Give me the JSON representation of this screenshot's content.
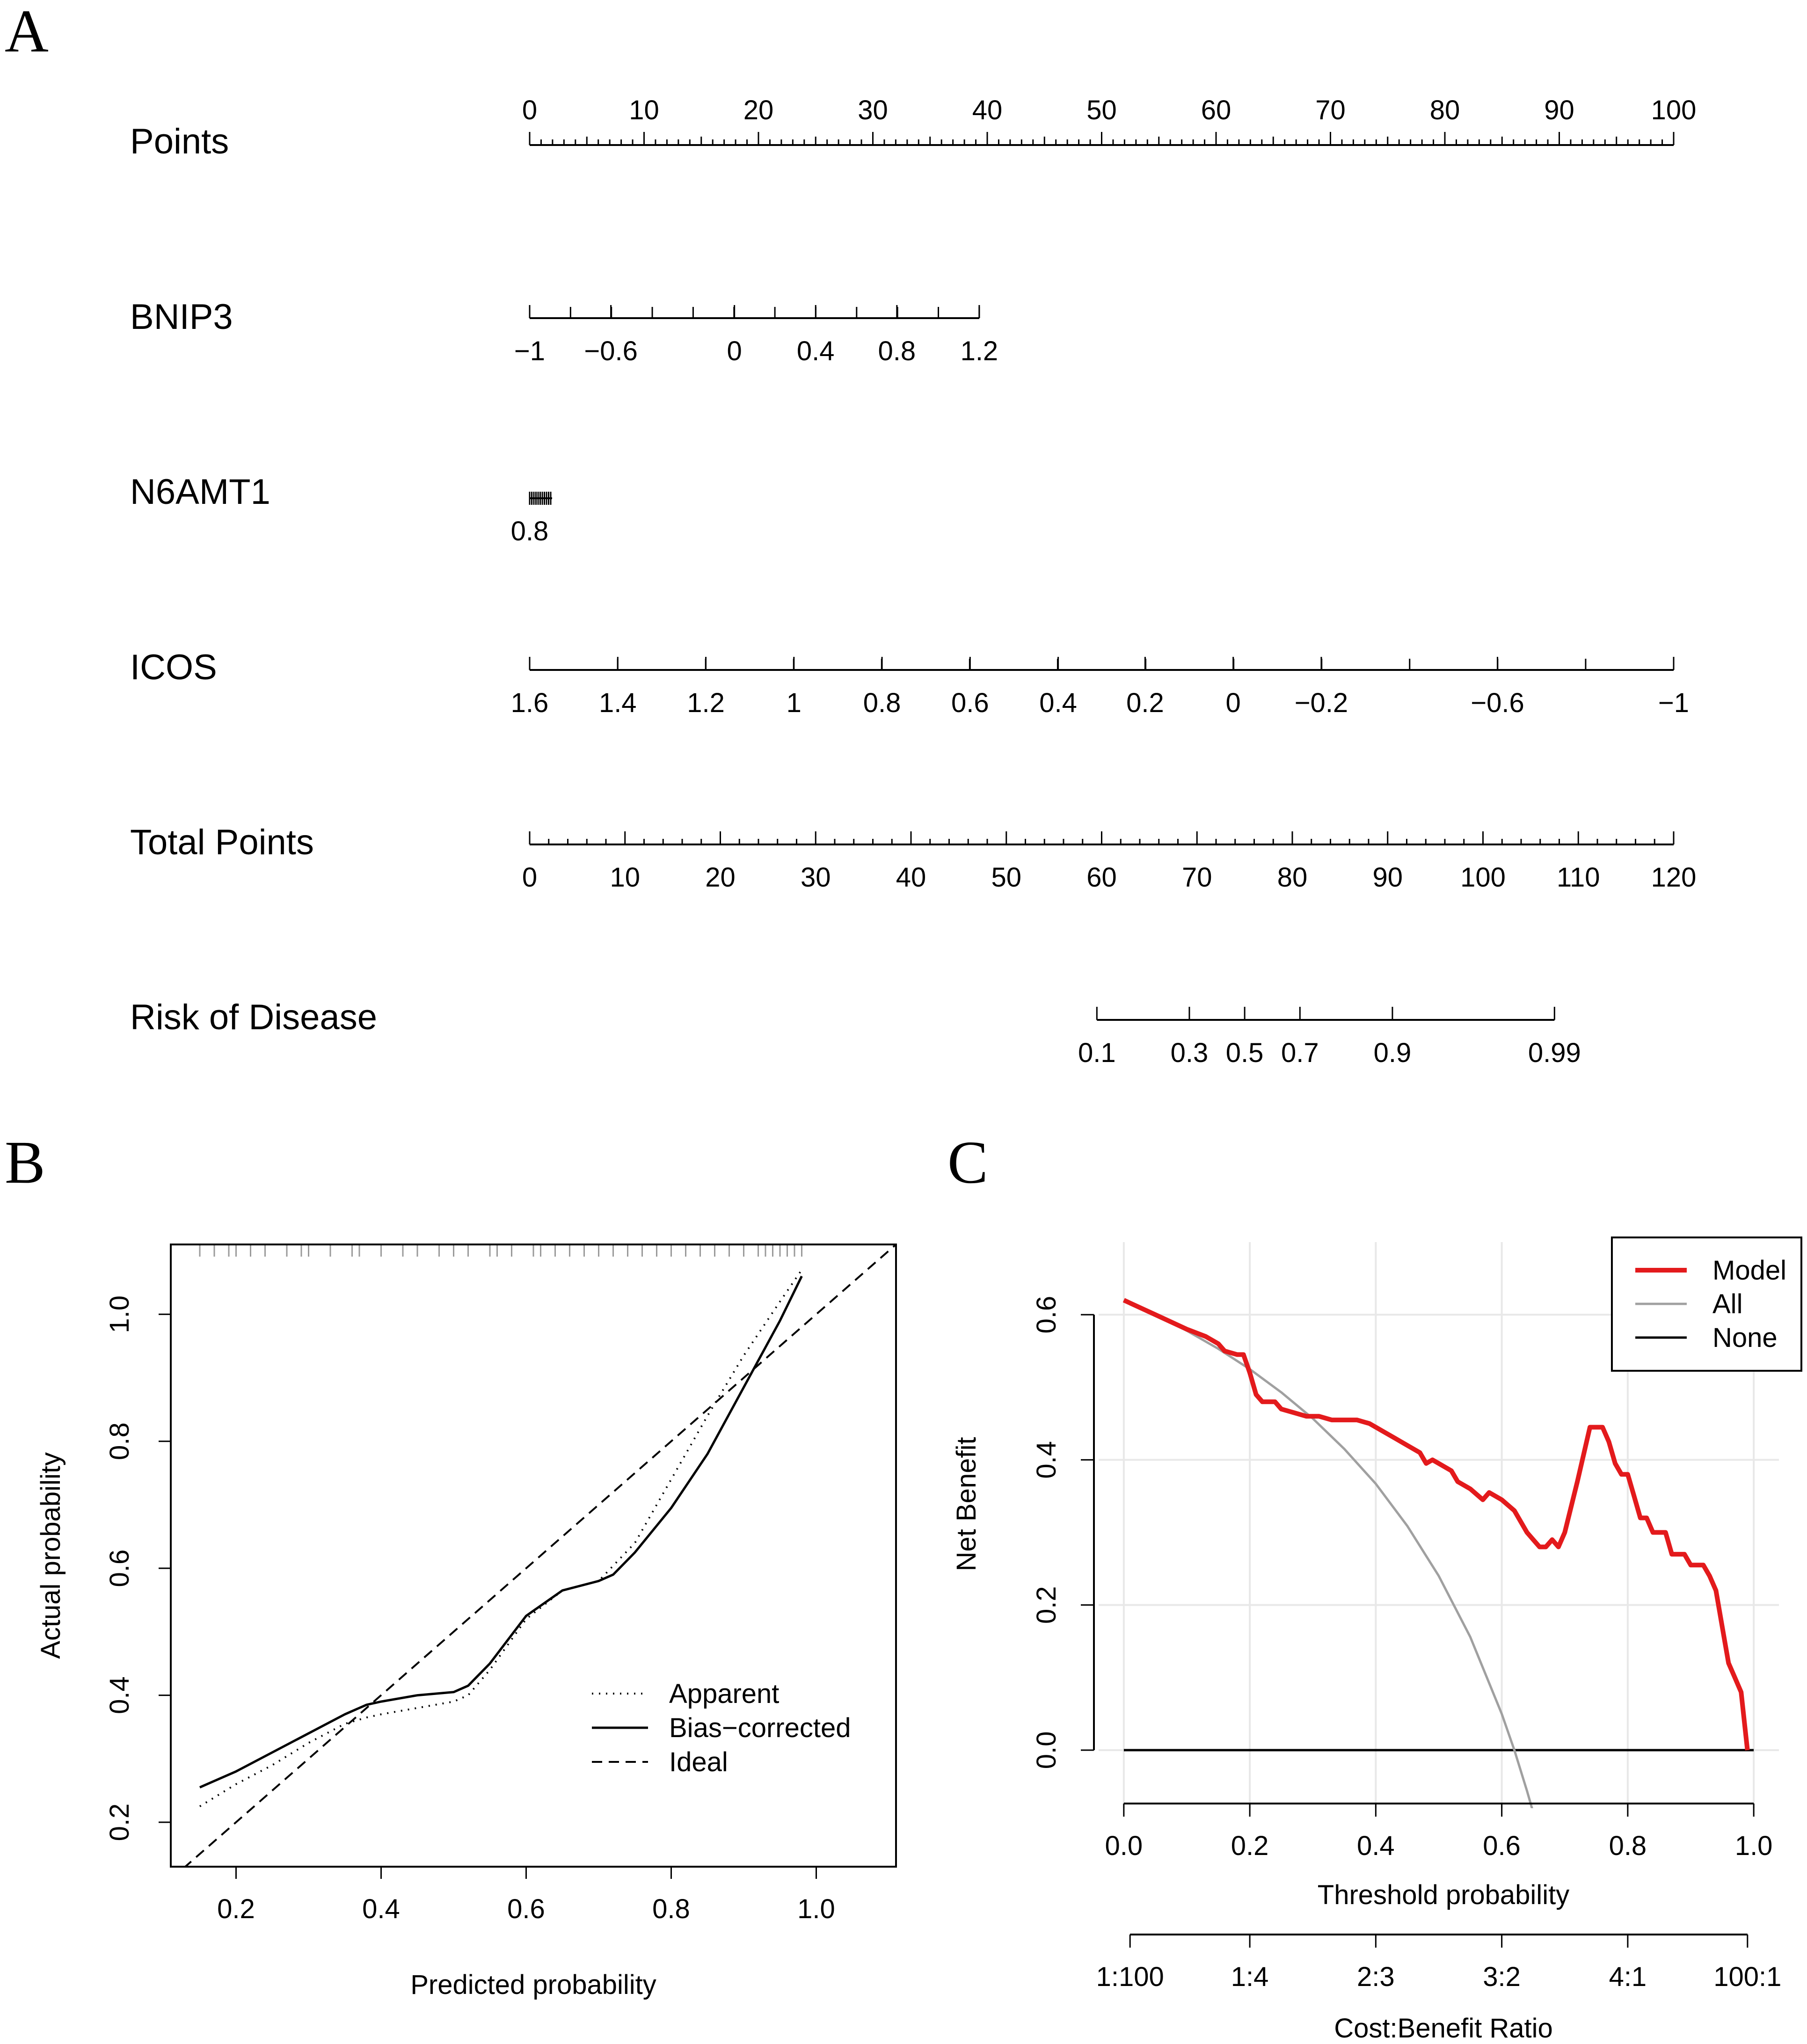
{
  "panel_labels": {
    "a": "A",
    "b": "B",
    "c": "C"
  },
  "chart_data": [
    {
      "type": "nomogram",
      "panel": "A",
      "rows": [
        {
          "name": "Points",
          "label": "Points",
          "ticks": [
            {
              "label": "0",
              "points": 0
            },
            {
              "label": "10",
              "points": 10
            },
            {
              "label": "20",
              "points": 20
            },
            {
              "label": "30",
              "points": 30
            },
            {
              "label": "40",
              "points": 40
            },
            {
              "label": "50",
              "points": 50
            },
            {
              "label": "60",
              "points": 60
            },
            {
              "label": "70",
              "points": 70
            },
            {
              "label": "80",
              "points": 80
            },
            {
              "label": "90",
              "points": 90
            },
            {
              "label": "100",
              "points": 100
            }
          ]
        },
        {
          "name": "BNIP3",
          "label": "BNIP3",
          "ticks": [
            {
              "label": "−1",
              "points": 0
            },
            {
              "label": "−0.6",
              "points": 7.1
            },
            {
              "label": "0",
              "points": 17.9
            },
            {
              "label": "0.4",
              "points": 25
            },
            {
              "label": "0.8",
              "points": 32.1
            },
            {
              "label": "1.2",
              "points": 39.3
            }
          ]
        },
        {
          "name": "N6AMT1",
          "label": "N6AMT1",
          "ticks": [
            {
              "label": "0.8",
              "points": 0
            }
          ]
        },
        {
          "name": "ICOS",
          "label": "ICOS",
          "ticks": [
            {
              "label": "1.6",
              "points": 0
            },
            {
              "label": "1.4",
              "points": 7.7
            },
            {
              "label": "1.2",
              "points": 15.4
            },
            {
              "label": "1",
              "points": 23.1
            },
            {
              "label": "0.8",
              "points": 30.8
            },
            {
              "label": "0.6",
              "points": 38.5
            },
            {
              "label": "0.4",
              "points": 46.2
            },
            {
              "label": "0.2",
              "points": 53.8
            },
            {
              "label": "0",
              "points": 61.5
            },
            {
              "label": "−0.2",
              "points": 69.2
            },
            {
              "label": "−0.6",
              "points": 84.6
            },
            {
              "label": "−1",
              "points": 100
            }
          ]
        },
        {
          "name": "Total Points",
          "label": "Total Points",
          "ticks": [
            {
              "label": "0",
              "total": 0
            },
            {
              "label": "10",
              "total": 10
            },
            {
              "label": "20",
              "total": 20
            },
            {
              "label": "30",
              "total": 30
            },
            {
              "label": "40",
              "total": 40
            },
            {
              "label": "50",
              "total": 50
            },
            {
              "label": "60",
              "total": 60
            },
            {
              "label": "70",
              "total": 70
            },
            {
              "label": "80",
              "total": 80
            },
            {
              "label": "90",
              "total": 90
            },
            {
              "label": "100",
              "total": 100
            },
            {
              "label": "110",
              "total": 110
            },
            {
              "label": "120",
              "total": 120
            }
          ]
        },
        {
          "name": "Risk of Disease",
          "label": "Risk of Disease",
          "ticks": [
            {
              "label": "0.1",
              "total": 59.5
            },
            {
              "label": "0.3",
              "total": 69.2
            },
            {
              "label": "0.5",
              "total": 75
            },
            {
              "label": "0.7",
              "total": 80.8
            },
            {
              "label": "0.9",
              "total": 90.5
            },
            {
              "label": "0.99",
              "total": 107.5
            }
          ]
        }
      ]
    },
    {
      "type": "line",
      "panel": "B",
      "title": "",
      "xlabel": "Predicted probability",
      "ylabel": "Actual probability",
      "xlim": [
        0.11,
        1.11
      ],
      "ylim": [
        0.13,
        1.11
      ],
      "xticks": [
        0.2,
        0.4,
        0.6,
        0.8,
        1.0
      ],
      "xtick_labels": [
        "0.2",
        "0.4",
        "0.6",
        "0.8",
        "1.0"
      ],
      "yticks": [
        0.2,
        0.4,
        0.6,
        0.8,
        1.0
      ],
      "ytick_labels": [
        "0.2",
        "0.4",
        "0.6",
        "0.8",
        "1.0"
      ],
      "legend": [
        {
          "label": "Apparent",
          "style": "dotted"
        },
        {
          "label": "Bias−corrected",
          "style": "solid"
        },
        {
          "label": "Ideal",
          "style": "dashed"
        }
      ],
      "legend_position": "bottom-right",
      "rug_x": [
        0.15,
        0.17,
        0.19,
        0.2,
        0.22,
        0.24,
        0.27,
        0.29,
        0.3,
        0.33,
        0.36,
        0.37,
        0.4,
        0.43,
        0.45,
        0.48,
        0.5,
        0.52,
        0.55,
        0.56,
        0.58,
        0.61,
        0.62,
        0.64,
        0.66,
        0.68,
        0.7,
        0.72,
        0.74,
        0.76,
        0.78,
        0.8,
        0.82,
        0.84,
        0.86,
        0.88,
        0.9,
        0.92,
        0.93,
        0.94,
        0.95,
        0.96,
        0.97,
        0.98
      ],
      "series": [
        {
          "name": "Apparent",
          "style": "dotted",
          "x": [
            0.15,
            0.2,
            0.25,
            0.3,
            0.35,
            0.38,
            0.4,
            0.45,
            0.5,
            0.52,
            0.55,
            0.6,
            0.65,
            0.7,
            0.75,
            0.8,
            0.85,
            0.9,
            0.95,
            0.98
          ],
          "y": [
            0.225,
            0.26,
            0.29,
            0.325,
            0.355,
            0.365,
            0.37,
            0.38,
            0.39,
            0.4,
            0.44,
            0.52,
            0.565,
            0.58,
            0.64,
            0.74,
            0.84,
            0.935,
            1.02,
            1.07
          ]
        },
        {
          "name": "Bias−corrected",
          "style": "solid",
          "x": [
            0.15,
            0.2,
            0.25,
            0.3,
            0.35,
            0.38,
            0.4,
            0.45,
            0.5,
            0.52,
            0.55,
            0.6,
            0.65,
            0.7,
            0.72,
            0.75,
            0.8,
            0.85,
            0.9,
            0.95,
            0.98
          ],
          "y": [
            0.255,
            0.28,
            0.31,
            0.34,
            0.37,
            0.385,
            0.39,
            0.4,
            0.405,
            0.415,
            0.45,
            0.525,
            0.565,
            0.58,
            0.59,
            0.625,
            0.695,
            0.78,
            0.885,
            0.99,
            1.06
          ]
        },
        {
          "name": "Ideal",
          "style": "dashed",
          "x": [
            0.11,
            1.11
          ],
          "y": [
            0.11,
            1.11
          ]
        }
      ]
    },
    {
      "type": "line",
      "panel": "C",
      "title": "",
      "xlabel": "Threshold probability",
      "ylabel": "Net Benefit",
      "secondary_xlabel": "Cost:Benefit Ratio",
      "xlim": [
        -0.04,
        1.04
      ],
      "ylim": [
        -0.08,
        0.7
      ],
      "xticks": [
        0.0,
        0.2,
        0.4,
        0.6,
        0.8,
        1.0
      ],
      "xtick_labels": [
        "0.0",
        "0.2",
        "0.4",
        "0.6",
        "0.8",
        "1.0"
      ],
      "yticks": [
        0.0,
        0.2,
        0.4,
        0.6
      ],
      "ytick_labels": [
        "0.0",
        "0.2",
        "0.4",
        "0.6"
      ],
      "secondary_xticks": [
        0.0099,
        0.2,
        0.4,
        0.6,
        0.8,
        0.9901
      ],
      "secondary_xtick_labels": [
        "1:100",
        "1:4",
        "2:3",
        "3:2",
        "4:1",
        "100:1"
      ],
      "grid": true,
      "legend": [
        {
          "label": "Model",
          "color": "#e31a1c"
        },
        {
          "label": "All",
          "color": "#a0a0a0"
        },
        {
          "label": "None",
          "color": "#000000"
        }
      ],
      "legend_position": "top-right",
      "series": [
        {
          "name": "Model",
          "color": "#e31a1c",
          "x": [
            0.0,
            0.05,
            0.1,
            0.13,
            0.15,
            0.16,
            0.18,
            0.19,
            0.2,
            0.21,
            0.22,
            0.24,
            0.25,
            0.27,
            0.29,
            0.31,
            0.33,
            0.35,
            0.37,
            0.39,
            0.41,
            0.43,
            0.45,
            0.47,
            0.48,
            0.49,
            0.5,
            0.52,
            0.53,
            0.55,
            0.57,
            0.58,
            0.6,
            0.62,
            0.64,
            0.65,
            0.66,
            0.67,
            0.68,
            0.69,
            0.7,
            0.72,
            0.74,
            0.75,
            0.76,
            0.77,
            0.78,
            0.79,
            0.8,
            0.81,
            0.82,
            0.83,
            0.84,
            0.85,
            0.86,
            0.87,
            0.88,
            0.89,
            0.9,
            0.91,
            0.92,
            0.93,
            0.94,
            0.95,
            0.96,
            0.97,
            0.98,
            0.99
          ],
          "y": [
            0.62,
            0.6,
            0.58,
            0.57,
            0.56,
            0.55,
            0.545,
            0.545,
            0.52,
            0.49,
            0.48,
            0.48,
            0.47,
            0.465,
            0.46,
            0.46,
            0.455,
            0.455,
            0.455,
            0.45,
            0.44,
            0.43,
            0.42,
            0.41,
            0.395,
            0.4,
            0.395,
            0.385,
            0.37,
            0.36,
            0.345,
            0.355,
            0.345,
            0.33,
            0.3,
            0.29,
            0.28,
            0.28,
            0.29,
            0.28,
            0.3,
            0.37,
            0.445,
            0.445,
            0.445,
            0.425,
            0.395,
            0.38,
            0.38,
            0.35,
            0.32,
            0.32,
            0.3,
            0.3,
            0.3,
            0.27,
            0.27,
            0.27,
            0.255,
            0.255,
            0.255,
            0.24,
            0.22,
            0.17,
            0.12,
            0.1,
            0.08,
            0.0
          ]
        },
        {
          "name": "All",
          "color": "#a0a0a0",
          "x": [
            0.0,
            0.05,
            0.1,
            0.15,
            0.2,
            0.25,
            0.3,
            0.35,
            0.4,
            0.45,
            0.5,
            0.55,
            0.6,
            0.62,
            0.64,
            0.65
          ],
          "y": [
            0.62,
            0.6,
            0.578,
            0.553,
            0.525,
            0.493,
            0.457,
            0.415,
            0.367,
            0.309,
            0.24,
            0.156,
            0.05,
            0.0,
            -0.056,
            -0.086
          ]
        },
        {
          "name": "None",
          "color": "#000000",
          "x": [
            0.0,
            1.0
          ],
          "y": [
            0.0,
            0.0
          ]
        }
      ]
    }
  ]
}
